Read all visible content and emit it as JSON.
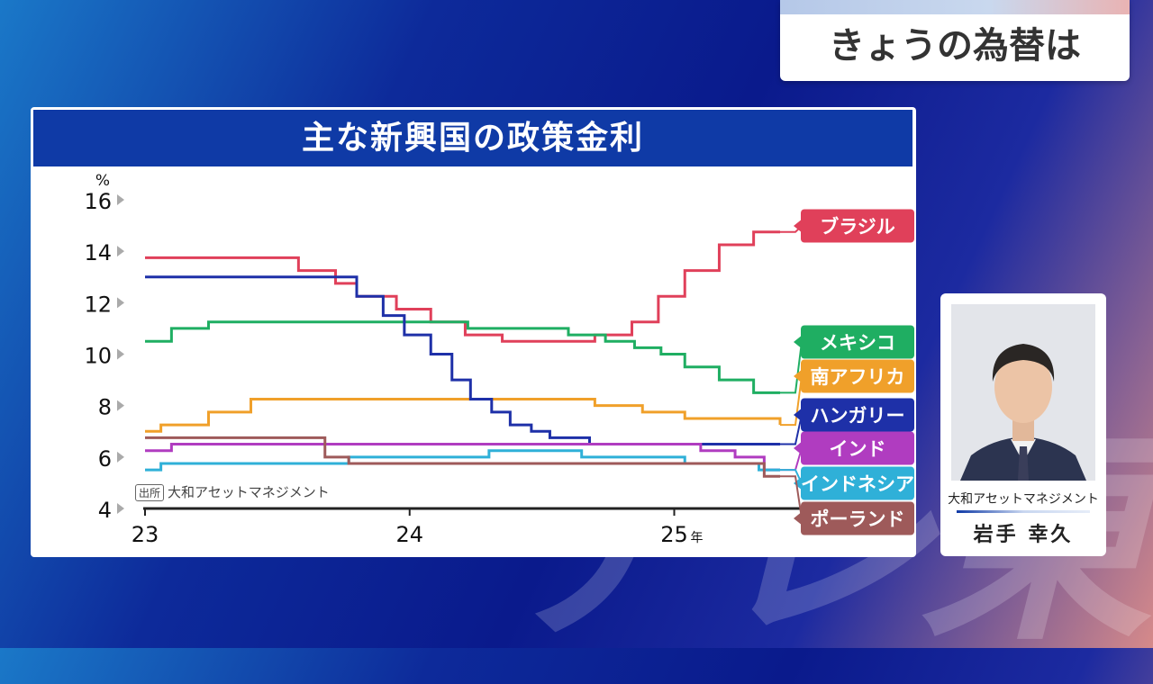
{
  "corner_title": "きょうの為替は",
  "watermark": "テレ東",
  "card_title": "主な新興国の政策金利",
  "source": {
    "tag": "出所",
    "text": "大和アセットマネジメント"
  },
  "presenter": {
    "org": "大和アセットマネジメント",
    "name": "岩手 幸久"
  },
  "chart_data": {
    "type": "line",
    "title": "主な新興国の政策金利",
    "y_unit": "%",
    "x_unit": "年",
    "ylim": [
      4,
      16
    ],
    "yticks": [
      4,
      6,
      8,
      10,
      12,
      14,
      16
    ],
    "xlim": [
      2023.0,
      2025.4
    ],
    "xticks": [
      {
        "value": 2023,
        "label": "23"
      },
      {
        "value": 2024,
        "label": "24"
      },
      {
        "value": 2025,
        "label": "25"
      }
    ],
    "series": [
      {
        "name": "ブラジル",
        "color": "#e0405a",
        "points": [
          [
            2023.0,
            13.75
          ],
          [
            2023.58,
            13.25
          ],
          [
            2023.72,
            12.75
          ],
          [
            2023.8,
            12.25
          ],
          [
            2023.95,
            11.75
          ],
          [
            2024.08,
            11.25
          ],
          [
            2024.21,
            10.75
          ],
          [
            2024.35,
            10.5
          ],
          [
            2024.7,
            10.75
          ],
          [
            2024.84,
            11.25
          ],
          [
            2024.94,
            12.25
          ],
          [
            2025.04,
            13.25
          ],
          [
            2025.17,
            14.25
          ],
          [
            2025.3,
            14.75
          ],
          [
            2025.4,
            14.75
          ]
        ]
      },
      {
        "name": "メキシコ",
        "color": "#1fae62",
        "points": [
          [
            2023.0,
            10.5
          ],
          [
            2023.1,
            11.0
          ],
          [
            2023.24,
            11.25
          ],
          [
            2024.22,
            11.0
          ],
          [
            2024.6,
            10.75
          ],
          [
            2024.74,
            10.5
          ],
          [
            2024.85,
            10.25
          ],
          [
            2024.95,
            10.0
          ],
          [
            2025.04,
            9.5
          ],
          [
            2025.17,
            9.0
          ],
          [
            2025.3,
            8.5
          ],
          [
            2025.4,
            8.5
          ]
        ]
      },
      {
        "name": "南アフリカ",
        "color": "#f0a02a",
        "points": [
          [
            2023.0,
            7.0
          ],
          [
            2023.06,
            7.25
          ],
          [
            2023.24,
            7.75
          ],
          [
            2023.4,
            8.25
          ],
          [
            2024.7,
            8.0
          ],
          [
            2024.88,
            7.75
          ],
          [
            2025.04,
            7.5
          ],
          [
            2025.4,
            7.25
          ]
        ]
      },
      {
        "name": "ハンガリー",
        "color": "#1e30a8",
        "points": [
          [
            2023.0,
            13.0
          ],
          [
            2023.8,
            12.25
          ],
          [
            2023.9,
            11.5
          ],
          [
            2023.98,
            10.75
          ],
          [
            2024.08,
            10.0
          ],
          [
            2024.16,
            9.0
          ],
          [
            2024.23,
            8.25
          ],
          [
            2024.31,
            7.75
          ],
          [
            2024.38,
            7.25
          ],
          [
            2024.46,
            7.0
          ],
          [
            2024.53,
            6.75
          ],
          [
            2024.68,
            6.5
          ],
          [
            2025.4,
            6.5
          ]
        ]
      },
      {
        "name": "インド",
        "color": "#b03cc0",
        "points": [
          [
            2023.0,
            6.25
          ],
          [
            2023.1,
            6.5
          ],
          [
            2024.84,
            6.5
          ],
          [
            2025.1,
            6.25
          ],
          [
            2025.23,
            6.0
          ],
          [
            2025.34,
            5.5
          ],
          [
            2025.4,
            5.5
          ]
        ]
      },
      {
        "name": "インドネシア",
        "color": "#2fb0d8",
        "points": [
          [
            2023.0,
            5.5
          ],
          [
            2023.06,
            5.75
          ],
          [
            2023.77,
            6.0
          ],
          [
            2024.3,
            6.25
          ],
          [
            2024.65,
            6.0
          ],
          [
            2025.04,
            5.75
          ],
          [
            2025.32,
            5.5
          ],
          [
            2025.4,
            5.5
          ]
        ]
      },
      {
        "name": "ポーランド",
        "color": "#9e5a5a",
        "points": [
          [
            2023.0,
            6.75
          ],
          [
            2023.68,
            6.0
          ],
          [
            2023.77,
            5.75
          ],
          [
            2025.34,
            5.25
          ],
          [
            2025.4,
            5.25
          ]
        ]
      }
    ]
  }
}
